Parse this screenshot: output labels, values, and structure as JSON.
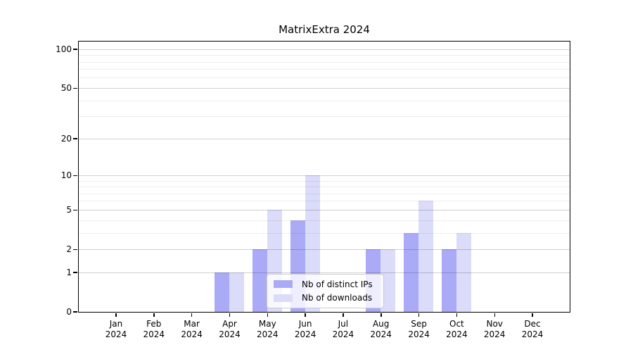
{
  "title": "MatrixExtra 2024",
  "chart_data": {
    "type": "bar",
    "title": "MatrixExtra 2024",
    "categories": [
      "Jan",
      "Feb",
      "Mar",
      "Apr",
      "May",
      "Jun",
      "Jul",
      "Aug",
      "Sep",
      "Oct",
      "Nov",
      "Dec"
    ],
    "year": "2024",
    "series": [
      {
        "name": "Nb of distinct IPs",
        "color": "#aaaaf7",
        "values": [
          0,
          0,
          0,
          1,
          2,
          4,
          0,
          2,
          3,
          2,
          0,
          0
        ]
      },
      {
        "name": "Nb of downloads",
        "color": "#dbdbfa",
        "values": [
          0,
          0,
          0,
          1,
          5,
          10,
          0,
          2,
          6,
          3,
          0,
          0
        ]
      }
    ],
    "yscale": "log1p",
    "yticks": [
      0,
      1,
      2,
      5,
      10,
      20,
      50,
      100
    ],
    "yticks_minor": [
      3,
      4,
      6,
      7,
      8,
      9,
      30,
      40,
      60,
      70,
      80,
      90
    ],
    "ylim": [
      0,
      115
    ],
    "xlabel": "",
    "ylabel": "",
    "grid": true,
    "legend_position": "lower center"
  }
}
